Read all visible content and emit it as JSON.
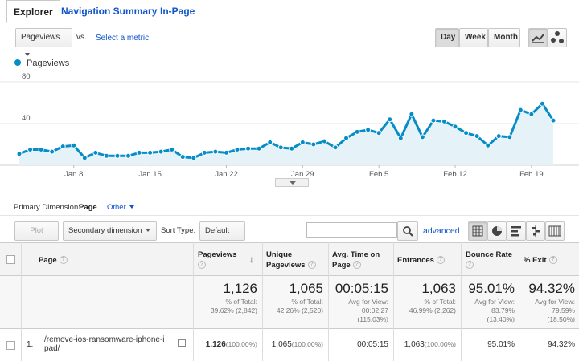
{
  "tabs": [
    "Explorer",
    "Navigation Summary",
    "In-Page"
  ],
  "metric_select": "Pageviews",
  "vs_label": "vs.",
  "select_metric_link": "Select a metric",
  "period_buttons": [
    "Day",
    "Week",
    "Month"
  ],
  "chart_data": {
    "type": "line",
    "legend": "Pageviews",
    "series_color": "#058dc7",
    "fill_color": "#e5f3f9",
    "y_ticks": [
      40,
      80
    ],
    "ylim": [
      0,
      80
    ],
    "x_ticks": [
      "Jan 8",
      "Jan 15",
      "Jan 22",
      "Jan 29",
      "Feb 5",
      "Feb 12",
      "Feb 19"
    ],
    "x_tick_indices": [
      5,
      12,
      19,
      26,
      33,
      40,
      47
    ],
    "values": [
      11,
      15,
      15,
      13,
      18,
      19,
      7,
      12,
      9,
      9,
      9,
      12,
      12,
      13,
      15,
      8,
      7,
      12,
      13,
      12,
      15,
      16,
      16,
      22,
      17,
      16,
      22,
      20,
      23,
      17,
      26,
      32,
      34,
      31,
      44,
      26,
      49,
      27,
      43,
      42,
      37,
      31,
      28,
      19,
      28,
      27,
      53,
      49,
      59,
      43
    ]
  },
  "primary_dimension": {
    "label": "Primary Dimension:",
    "page": "Page",
    "other": "Other"
  },
  "toolbar": {
    "plot_rows": "Plot Rows",
    "secondary_dimension": "Secondary dimension",
    "sort_type_label": "Sort Type:",
    "sort_type_value": "Default",
    "advanced": "advanced"
  },
  "table": {
    "columns": [
      {
        "label": "Page"
      },
      {
        "label": "Pageviews"
      },
      {
        "label": "Unique Pageviews"
      },
      {
        "label": "Avg. Time on Page"
      },
      {
        "label": "Entrances"
      },
      {
        "label": "Bounce Rate"
      },
      {
        "label": "% Exit"
      }
    ],
    "totals": [
      {
        "big": "1,126",
        "line1": "% of Total:",
        "line2": "39.62% (2,842)"
      },
      {
        "big": "1,065",
        "line1": "% of Total:",
        "line2": "42.26% (2,520)"
      },
      {
        "big": "00:05:15",
        "line1": "Avg for View:",
        "line2": "00:02:27",
        "line3": "(115.03%)"
      },
      {
        "big": "1,063",
        "line1": "% of Total:",
        "line2": "46.99% (2,262)"
      },
      {
        "big": "95.01%",
        "line1": "Avg for View:",
        "line2": "83.79%",
        "line3": "(13.40%)"
      },
      {
        "big": "94.32%",
        "line1": "Avg for View:",
        "line2": "79.59%",
        "line3": "(18.50%)"
      }
    ],
    "row": {
      "index": "1.",
      "page_line1": "/remove-ios-ransomware-iphone-i",
      "page_line2": "pad/",
      "pageviews": "1,126",
      "pageviews_pct": "(100.00%)",
      "unique": "1,065",
      "unique_pct": "(100.00%)",
      "avg_time": "00:05:15",
      "entrances": "1,063",
      "entrances_pct": "(100.00%)",
      "bounce": "95.01%",
      "exit": "94.32%"
    }
  }
}
